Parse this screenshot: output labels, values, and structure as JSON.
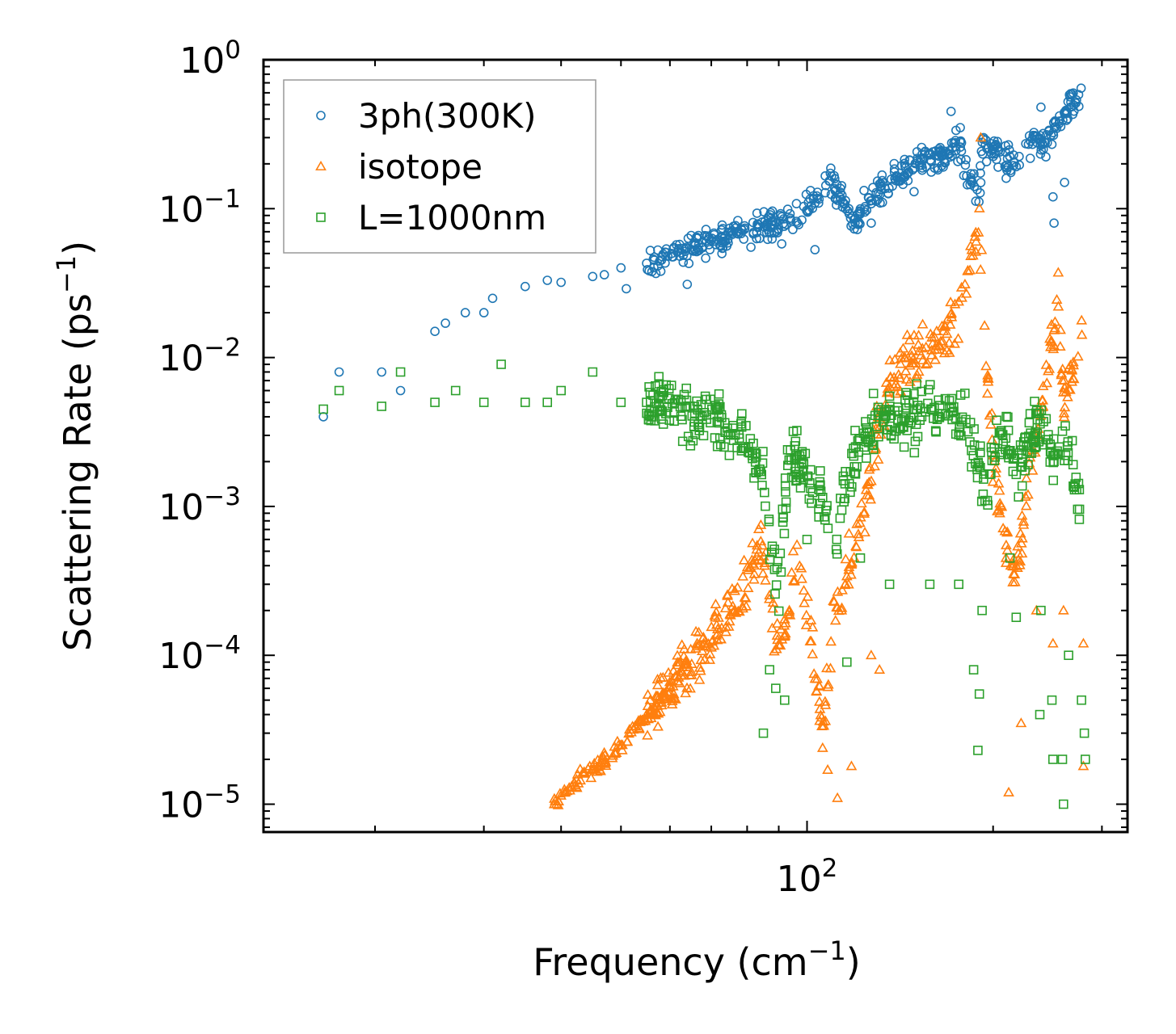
{
  "chart_data": {
    "type": "scatter",
    "title": "",
    "xlabel": "Frequency (cm",
    "xlabel_sup": "−1",
    "xlabel_end": ")",
    "ylabel": "Scattering Rate (ps",
    "ylabel_sup": "−1",
    "ylabel_end": ")",
    "x_scale": "log",
    "y_scale": "log",
    "xlim": [
      13.2,
      330
    ],
    "ylim": [
      6.5e-06,
      1.0
    ],
    "x_ticks": [
      {
        "value": 100,
        "base": "10",
        "exp": "2"
      }
    ],
    "y_ticks": [
      {
        "value": 1,
        "base": "10",
        "exp": "0"
      },
      {
        "value": 0.1,
        "base": "10",
        "exp": "−1"
      },
      {
        "value": 0.01,
        "base": "10",
        "exp": "−2"
      },
      {
        "value": 0.001,
        "base": "10",
        "exp": "−3"
      },
      {
        "value": 0.0001,
        "base": "10",
        "exp": "−4"
      },
      {
        "value": 1e-05,
        "base": "10",
        "exp": "−5"
      }
    ],
    "legend_position": "top-left",
    "series": [
      {
        "name": "3ph(300K)",
        "marker": "circle",
        "color": "#1f77b4",
        "anchors": [
          [
            16.5,
            0.004
          ],
          [
            17.5,
            0.008
          ],
          [
            20.5,
            0.008
          ],
          [
            22,
            0.006
          ],
          [
            25,
            0.015
          ],
          [
            26,
            0.017
          ],
          [
            28,
            0.02
          ],
          [
            30,
            0.02
          ],
          [
            31,
            0.025
          ],
          [
            35,
            0.03
          ],
          [
            38,
            0.033
          ],
          [
            40,
            0.032
          ],
          [
            45,
            0.035
          ],
          [
            50,
            0.04
          ],
          [
            55,
            0.043
          ],
          [
            60,
            0.05
          ],
          [
            65,
            0.055
          ],
          [
            70,
            0.06
          ],
          [
            75,
            0.065
          ],
          [
            80,
            0.07
          ],
          [
            85,
            0.075
          ],
          [
            90,
            0.08
          ],
          [
            95,
            0.085
          ],
          [
            100,
            0.1
          ],
          [
            105,
            0.13
          ],
          [
            108,
            0.16
          ],
          [
            110,
            0.15
          ],
          [
            113,
            0.12
          ],
          [
            118,
            0.09
          ],
          [
            120,
            0.085
          ],
          [
            125,
            0.11
          ],
          [
            130,
            0.14
          ],
          [
            140,
            0.16
          ],
          [
            150,
            0.2
          ],
          [
            160,
            0.22
          ],
          [
            170,
            0.24
          ],
          [
            175,
            0.27
          ],
          [
            180,
            0.2
          ],
          [
            185,
            0.15
          ],
          [
            190,
            0.12
          ],
          [
            192,
            0.28
          ],
          [
            200,
            0.25
          ],
          [
            215,
            0.2
          ],
          [
            225,
            0.25
          ],
          [
            235,
            0.3
          ],
          [
            245,
            0.28
          ],
          [
            255,
            0.38
          ],
          [
            265,
            0.47
          ],
          [
            280,
            0.57
          ]
        ],
        "spread": 0.16,
        "extras": [
          [
            47,
            0.036
          ],
          [
            51,
            0.029
          ],
          [
            58,
            0.038
          ],
          [
            64,
            0.031
          ],
          [
            91,
            0.058
          ],
          [
            103,
            0.053
          ],
          [
            121,
            0.08
          ],
          [
            127,
            0.08
          ],
          [
            149,
            0.13
          ],
          [
            171,
            0.45
          ],
          [
            177,
            0.35
          ],
          [
            193,
            0.3
          ],
          [
            210,
            0.16
          ],
          [
            239,
            0.48
          ],
          [
            250,
            0.12
          ],
          [
            251,
            0.08
          ],
          [
            261,
            0.15
          ]
        ]
      },
      {
        "name": "isotope",
        "marker": "triangle",
        "color": "#ff7f0e",
        "anchors": [
          [
            39,
            1e-05
          ],
          [
            42,
            1.4e-05
          ],
          [
            46,
            1.8e-05
          ],
          [
            50,
            2.5e-05
          ],
          [
            55,
            4e-05
          ],
          [
            60,
            6e-05
          ],
          [
            65,
            9e-05
          ],
          [
            70,
            0.00013
          ],
          [
            75,
            0.0002
          ],
          [
            80,
            0.0003
          ],
          [
            84,
            0.0005
          ],
          [
            87,
            0.0003
          ],
          [
            89,
            0.00012
          ],
          [
            92,
            0.00015
          ],
          [
            96,
            0.0004
          ],
          [
            100,
            0.0002
          ],
          [
            103,
            8e-05
          ],
          [
            106,
            3e-05
          ],
          [
            110,
            0.00015
          ],
          [
            115,
            0.0003
          ],
          [
            120,
            0.0006
          ],
          [
            125,
            0.001
          ],
          [
            130,
            0.003
          ],
          [
            135,
            0.006
          ],
          [
            140,
            0.008
          ],
          [
            150,
            0.01
          ],
          [
            160,
            0.012
          ],
          [
            170,
            0.015
          ],
          [
            180,
            0.025
          ],
          [
            185,
            0.05
          ],
          [
            190,
            0.07
          ],
          [
            195,
            0.01
          ],
          [
            200,
            0.002
          ],
          [
            210,
            0.0005
          ],
          [
            220,
            0.0004
          ],
          [
            230,
            0.002
          ],
          [
            240,
            0.005
          ],
          [
            250,
            0.015
          ],
          [
            255,
            0.025
          ],
          [
            260,
            0.005
          ],
          [
            270,
            0.008
          ],
          [
            280,
            0.02
          ]
        ],
        "spread": 0.3,
        "extras": [
          [
            95,
            0.0005
          ],
          [
            108,
            1.7e-05
          ],
          [
            112,
            1.1e-05
          ],
          [
            118,
            1.8e-05
          ],
          [
            127,
            0.0001
          ],
          [
            131,
            8e-05
          ],
          [
            191,
            0.3
          ],
          [
            212,
            1.2e-05
          ],
          [
            222,
            3.5e-05
          ],
          [
            235,
            0.0002
          ],
          [
            250,
            0.00012
          ],
          [
            260,
            0.0002
          ],
          [
            280,
            0.00012
          ],
          [
            280,
            1.8e-05
          ]
        ]
      },
      {
        "name": "L=1000nm",
        "marker": "square",
        "color": "#2ca02c",
        "anchors": [
          [
            16.5,
            0.0045
          ],
          [
            17.5,
            0.006
          ],
          [
            20.5,
            0.0047
          ],
          [
            22,
            0.008
          ],
          [
            25,
            0.005
          ],
          [
            27,
            0.006
          ],
          [
            30,
            0.005
          ],
          [
            32,
            0.009
          ],
          [
            35,
            0.005
          ],
          [
            38,
            0.005
          ],
          [
            40,
            0.006
          ],
          [
            45,
            0.008
          ],
          [
            50,
            0.005
          ],
          [
            55,
            0.005
          ],
          [
            60,
            0.005
          ],
          [
            65,
            0.004
          ],
          [
            70,
            0.004
          ],
          [
            75,
            0.003
          ],
          [
            80,
            0.003
          ],
          [
            85,
            0.0015
          ],
          [
            88,
            0.0005
          ],
          [
            90,
            0.0003
          ],
          [
            93,
            0.002
          ],
          [
            97,
            0.002
          ],
          [
            100,
            0.0015
          ],
          [
            105,
            0.0012
          ],
          [
            108,
            0.0006
          ],
          [
            112,
            0.0006
          ],
          [
            116,
            0.0015
          ],
          [
            120,
            0.002
          ],
          [
            125,
            0.003
          ],
          [
            130,
            0.004
          ],
          [
            140,
            0.004
          ],
          [
            150,
            0.004
          ],
          [
            160,
            0.0045
          ],
          [
            170,
            0.0045
          ],
          [
            175,
            0.004
          ],
          [
            180,
            0.0035
          ],
          [
            190,
            0.002
          ],
          [
            195,
            0.001
          ],
          [
            200,
            0.003
          ],
          [
            210,
            0.003
          ],
          [
            220,
            0.002
          ],
          [
            230,
            0.003
          ],
          [
            240,
            0.0035
          ],
          [
            250,
            0.002
          ],
          [
            260,
            0.003
          ],
          [
            270,
            0.0015
          ],
          [
            280,
            0.001
          ]
        ],
        "spread": 0.32,
        "extras": [
          [
            85,
            3e-05
          ],
          [
            87,
            8e-05
          ],
          [
            89,
            6e-05
          ],
          [
            92,
            5e-05
          ],
          [
            100,
            0.0006
          ],
          [
            116,
            9e-05
          ],
          [
            122,
            0.00045
          ],
          [
            136,
            0.0003
          ],
          [
            158,
            0.0003
          ],
          [
            176,
            0.0003
          ],
          [
            186,
            8e-05
          ],
          [
            189,
            2.3e-05
          ],
          [
            190,
            5.5e-05
          ],
          [
            192,
            0.0002
          ],
          [
            213,
            0.00045
          ],
          [
            218,
            0.00018
          ],
          [
            239,
            0.0002
          ],
          [
            249,
            5e-05
          ],
          [
            250,
            2e-05
          ],
          [
            259,
            2e-05
          ],
          [
            265,
            0.0001
          ],
          [
            278,
            5e-05
          ],
          [
            281,
            3e-05
          ],
          [
            282,
            2e-05
          ],
          [
            260,
            1e-05
          ],
          [
            238,
            4e-05
          ]
        ]
      }
    ]
  }
}
